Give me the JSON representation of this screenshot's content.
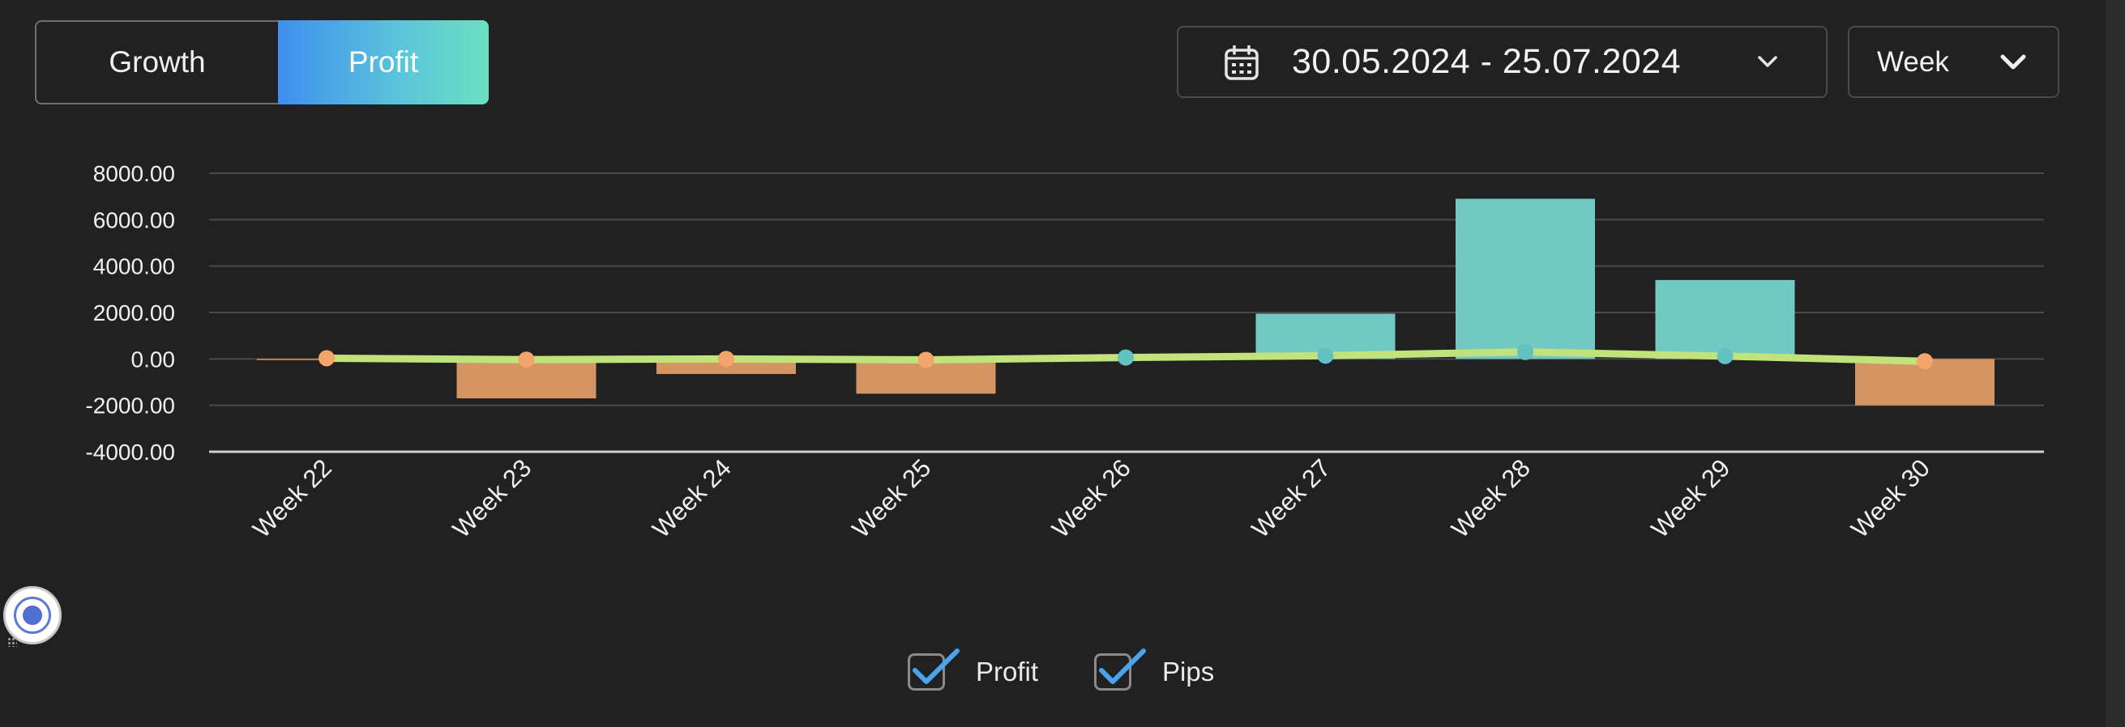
{
  "toggle": {
    "options": [
      "Growth",
      "Profit"
    ],
    "active": "Profit"
  },
  "date_range": {
    "text": "30.05.2024 - 25.07.2024",
    "icon": "calendar-icon"
  },
  "period_select": {
    "value": "Week",
    "icon": "chevron-down-icon"
  },
  "legend": {
    "items": [
      {
        "label": "Profit",
        "checked": true
      },
      {
        "label": "Pips",
        "checked": true
      }
    ]
  },
  "colors": {
    "positive_bar": "#71c9c1",
    "negative_bar": "#d59563",
    "line": "#c2e27b",
    "point_positive": "#62c1c1",
    "point_negative": "#f3a56b",
    "toggle_gradient_start": "#3f8ff0",
    "toggle_gradient_end": "#6ae0c0"
  },
  "chart_data": {
    "type": "bar",
    "categories": [
      "Week 22",
      "Week 23",
      "Week 24",
      "Week 25",
      "Week 26",
      "Week 27",
      "Week 28",
      "Week 29",
      "Week 30"
    ],
    "series": [
      {
        "name": "Profit",
        "type": "bar",
        "values": [
          -20,
          -1700,
          -650,
          -1500,
          0,
          1950,
          6900,
          3400,
          -2000
        ]
      },
      {
        "name": "Pips",
        "type": "line",
        "values": [
          30,
          -30,
          0,
          -40,
          60,
          140,
          300,
          120,
          -100
        ]
      }
    ],
    "yticks": [
      "8000.00",
      "6000.00",
      "4000.00",
      "2000.00",
      "0.00",
      "-2000.00",
      "-4000.00"
    ],
    "ylim": [
      -4000,
      8000
    ],
    "grid": true,
    "legend_position": "bottom"
  }
}
